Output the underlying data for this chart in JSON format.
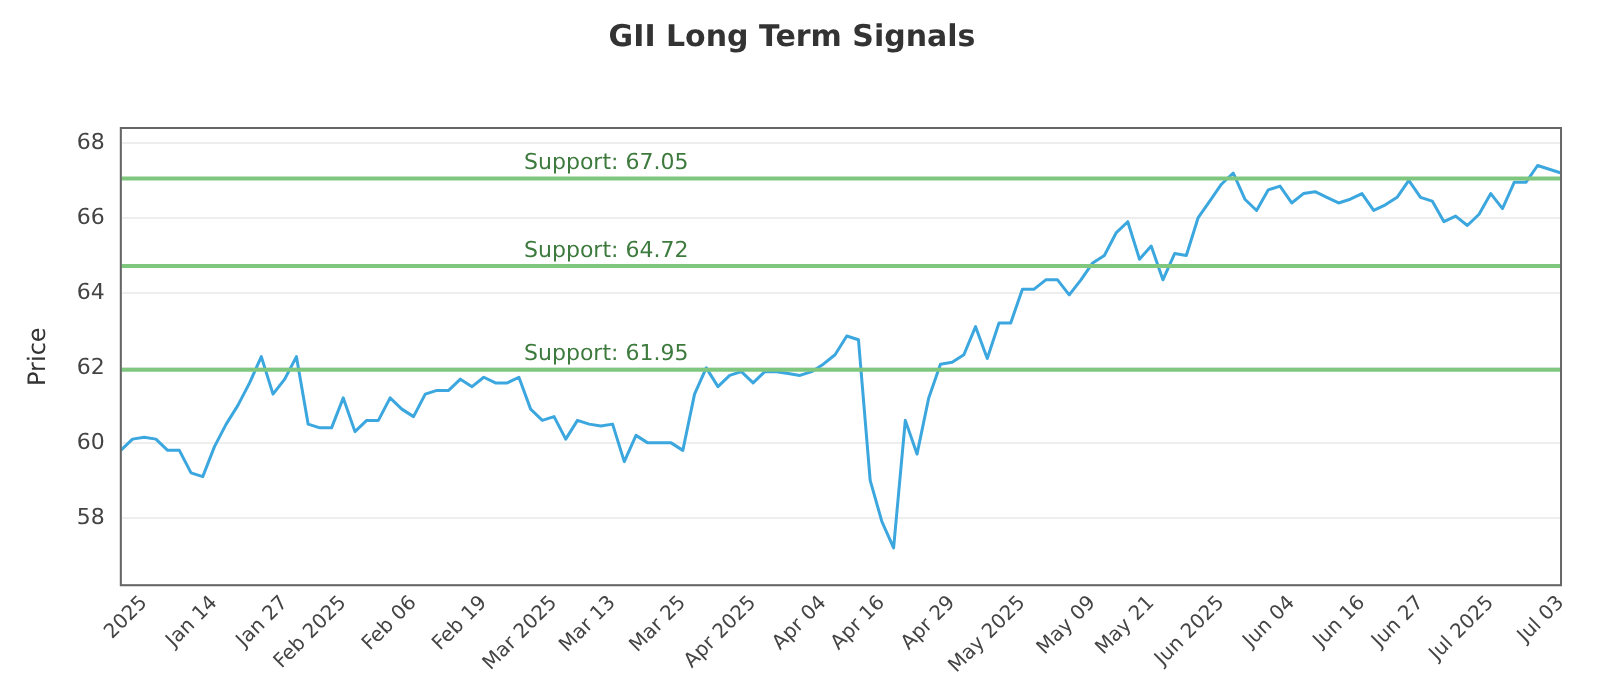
{
  "chart_data": {
    "type": "line",
    "title": "GII Long Term Signals",
    "ylabel": "Price",
    "categories": [
      null,
      null,
      "2025",
      null,
      null,
      null,
      null,
      null,
      "Jan 14",
      null,
      null,
      null,
      null,
      null,
      "Jan 27",
      null,
      null,
      null,
      null,
      "Feb 2025",
      null,
      null,
      null,
      null,
      null,
      "Feb 06",
      null,
      null,
      null,
      null,
      null,
      "Feb 19",
      null,
      null,
      null,
      null,
      null,
      "Mar 2025",
      null,
      null,
      null,
      null,
      "Mar 13",
      null,
      null,
      null,
      null,
      null,
      "Mar 25",
      null,
      null,
      null,
      null,
      null,
      "Apr 2025",
      null,
      null,
      null,
      null,
      null,
      "Apr 04",
      null,
      null,
      null,
      null,
      "Apr 16",
      null,
      null,
      null,
      null,
      null,
      "Apr 29",
      null,
      null,
      null,
      null,
      null,
      "May 2025",
      null,
      null,
      null,
      null,
      null,
      "May 09",
      null,
      null,
      null,
      null,
      "May 21",
      null,
      null,
      null,
      null,
      null,
      "Jun 2025",
      null,
      null,
      null,
      null,
      null,
      "Jun 04",
      null,
      null,
      null,
      null,
      null,
      "Jun 16",
      null,
      null,
      null,
      null,
      "Jun 27",
      null,
      null,
      null,
      null,
      null,
      "Jul 2025",
      null,
      null,
      null,
      null,
      null,
      "Jul 03"
    ],
    "series": [
      {
        "color": "#3ba7de",
        "values": [
          59.8,
          60.1,
          60.15,
          60.1,
          59.8,
          59.8,
          59.2,
          59.1,
          59.9,
          60.5,
          61.0,
          61.6,
          62.3,
          61.3,
          61.7,
          62.3,
          60.5,
          60.4,
          60.4,
          61.2,
          60.3,
          60.6,
          60.6,
          61.2,
          60.9,
          60.7,
          61.3,
          61.4,
          61.4,
          61.7,
          61.5,
          61.75,
          61.6,
          61.6,
          61.75,
          60.9,
          60.6,
          60.7,
          60.1,
          60.6,
          60.5,
          60.45,
          60.5,
          59.5,
          60.2,
          60.0,
          60.0,
          60.0,
          59.8,
          61.3,
          62.0,
          61.5,
          61.8,
          61.9,
          61.6,
          61.9,
          61.9,
          61.85,
          61.8,
          61.9,
          62.1,
          62.35,
          62.85,
          62.75,
          59.0,
          57.9,
          57.2,
          60.6,
          59.7,
          61.2,
          62.1,
          62.15,
          62.35,
          63.1,
          62.25,
          63.2,
          63.2,
          64.1,
          64.1,
          64.35,
          64.35,
          63.95,
          64.35,
          64.8,
          65.0,
          65.6,
          65.9,
          64.9,
          65.25,
          64.35,
          65.05,
          65.0,
          66.0,
          66.45,
          66.9,
          67.2,
          66.5,
          66.2,
          66.75,
          66.85,
          66.4,
          66.65,
          66.7,
          66.55,
          66.4,
          66.5,
          66.65,
          66.2,
          66.35,
          66.55,
          67.0,
          66.55,
          66.45,
          65.9,
          66.05,
          65.8,
          66.1,
          66.65,
          66.25,
          66.95,
          66.95,
          67.4,
          67.3,
          67.2
        ]
      }
    ],
    "ylim": [
      56.2,
      68.4
    ],
    "yticks": [
      58,
      60,
      62,
      64,
      66,
      68
    ],
    "grid": "y",
    "legend": false,
    "marker": "none",
    "line_style": "solid",
    "ref_lines": [
      {
        "axis": "y",
        "value": 67.05,
        "label": "Support: 67.05",
        "color": "#7fc77f"
      },
      {
        "axis": "y",
        "value": 64.72,
        "label": "Support: 64.72",
        "color": "#7fc77f"
      },
      {
        "axis": "y",
        "value": 61.95,
        "label": "Support: 61.95",
        "color": "#7fc77f"
      }
    ]
  }
}
